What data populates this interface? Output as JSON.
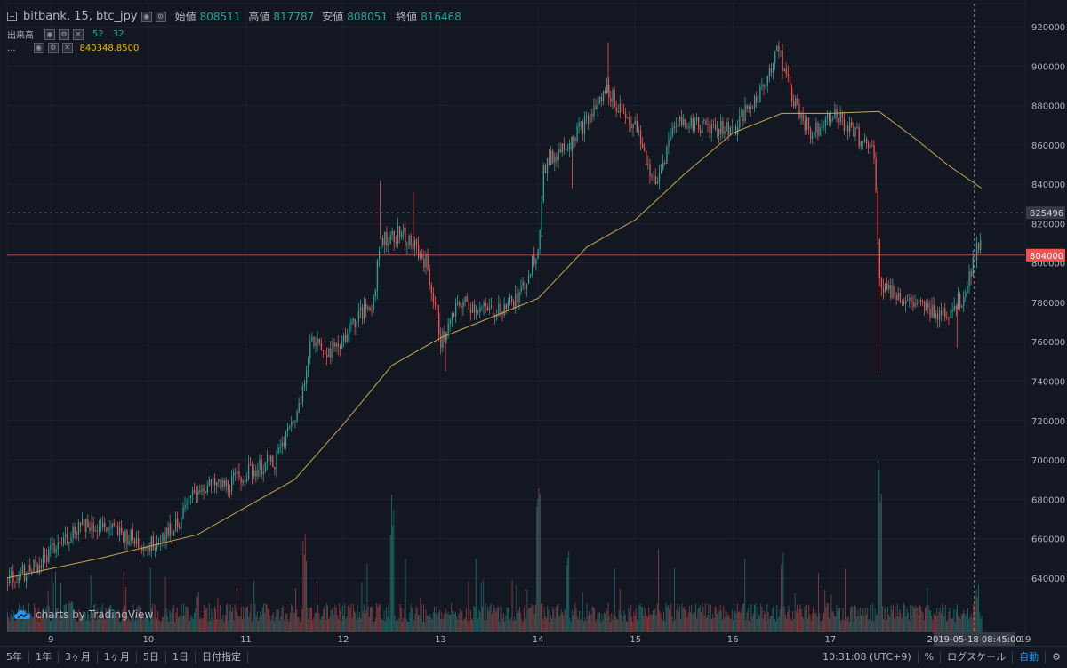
{
  "header": {
    "symbol": "bitbank, 15, btc_jpy",
    "open_label": "始値",
    "open_value": "808511",
    "high_label": "高値",
    "high_value": "817787",
    "low_label": "安値",
    "low_value": "808051",
    "close_label": "終値",
    "close_value": "816468",
    "volume_label": "出来高",
    "volume_v1": "52",
    "volume_v2": "32",
    "ma_label": "...",
    "ma_value": "840348.8500"
  },
  "chart_data": {
    "type": "candlestick",
    "title": "bitbank, 15, btc_jpy",
    "interval": "15",
    "ylim": [
      630000,
      920000
    ],
    "y_ticks": [
      "920000",
      "900000",
      "880000",
      "860000",
      "840000",
      "820000",
      "800000",
      "780000",
      "760000",
      "740000",
      "720000",
      "700000",
      "680000",
      "660000",
      "640000"
    ],
    "x_ticks": [
      "9",
      "10",
      "11",
      "12",
      "13",
      "14",
      "15",
      "16",
      "17",
      "19"
    ],
    "x_range_days": [
      8.55,
      19.0
    ],
    "price_path": [
      [
        8.55,
        638000
      ],
      [
        8.9,
        648000
      ],
      [
        9.3,
        668000
      ],
      [
        9.6,
        665000
      ],
      [
        10.0,
        656000
      ],
      [
        10.3,
        668000
      ],
      [
        10.5,
        686000
      ],
      [
        10.8,
        687000
      ],
      [
        11.0,
        693000
      ],
      [
        11.3,
        700000
      ],
      [
        11.55,
        728000
      ],
      [
        11.65,
        760000
      ],
      [
        11.9,
        755000
      ],
      [
        12.1,
        770000
      ],
      [
        12.3,
        780000
      ],
      [
        12.38,
        812000
      ],
      [
        12.6,
        815000
      ],
      [
        12.85,
        800000
      ],
      [
        13.0,
        760000
      ],
      [
        13.2,
        780000
      ],
      [
        13.5,
        775000
      ],
      [
        13.8,
        782000
      ],
      [
        14.0,
        810000
      ],
      [
        14.05,
        848000
      ],
      [
        14.3,
        862000
      ],
      [
        14.5,
        872000
      ],
      [
        14.7,
        888000
      ],
      [
        15.0,
        868000
      ],
      [
        15.2,
        838000
      ],
      [
        15.4,
        872000
      ],
      [
        15.7,
        870000
      ],
      [
        16.0,
        868000
      ],
      [
        16.3,
        888000
      ],
      [
        16.45,
        910000
      ],
      [
        16.6,
        885000
      ],
      [
        16.8,
        865000
      ],
      [
        17.0,
        877000
      ],
      [
        17.2,
        868000
      ],
      [
        17.45,
        856000
      ],
      [
        17.5,
        790000
      ],
      [
        17.8,
        780000
      ],
      [
        18.0,
        776000
      ],
      [
        18.2,
        775000
      ],
      [
        18.35,
        782000
      ],
      [
        18.55,
        816000
      ]
    ],
    "ma_path": [
      [
        8.55,
        640000
      ],
      [
        9.5,
        650000
      ],
      [
        10.5,
        662000
      ],
      [
        11.5,
        690000
      ],
      [
        12.0,
        718000
      ],
      [
        12.5,
        748000
      ],
      [
        13.0,
        762000
      ],
      [
        13.5,
        772000
      ],
      [
        14.0,
        782000
      ],
      [
        14.5,
        808000
      ],
      [
        15.0,
        822000
      ],
      [
        15.5,
        845000
      ],
      [
        16.0,
        866000
      ],
      [
        16.5,
        876000
      ],
      [
        17.0,
        876000
      ],
      [
        17.5,
        877000
      ],
      [
        17.9,
        862000
      ],
      [
        18.2,
        850000
      ],
      [
        18.55,
        838000
      ]
    ],
    "volume_spikes": [
      [
        9.2,
        0.2
      ],
      [
        10.5,
        0.3
      ],
      [
        11.6,
        0.62
      ],
      [
        12.5,
        0.86
      ],
      [
        14.0,
        1.0
      ],
      [
        14.3,
        0.55
      ],
      [
        16.5,
        0.5
      ],
      [
        17.5,
        1.08
      ],
      [
        18.5,
        0.3
      ]
    ],
    "price_line": {
      "value": 804000,
      "label": "804000",
      "color": "#ef5350"
    },
    "crosshair": {
      "value": 825496,
      "label": "825496",
      "time_label": "2019-05-18 08:45:00"
    },
    "colors": {
      "up": "#26a69a",
      "down": "#ef5350",
      "ma": "#c8a74f",
      "grid": "#1c2030"
    }
  },
  "watermark": "charts by TradingView",
  "bottombar": {
    "ranges": [
      "5年",
      "1年",
      "3ヶ月",
      "1ヶ月",
      "5日",
      "1日",
      "日付指定"
    ],
    "time": "10:31:08 (UTC+9)",
    "percent": "%",
    "log": "ログスケール",
    "auto": "自動"
  }
}
